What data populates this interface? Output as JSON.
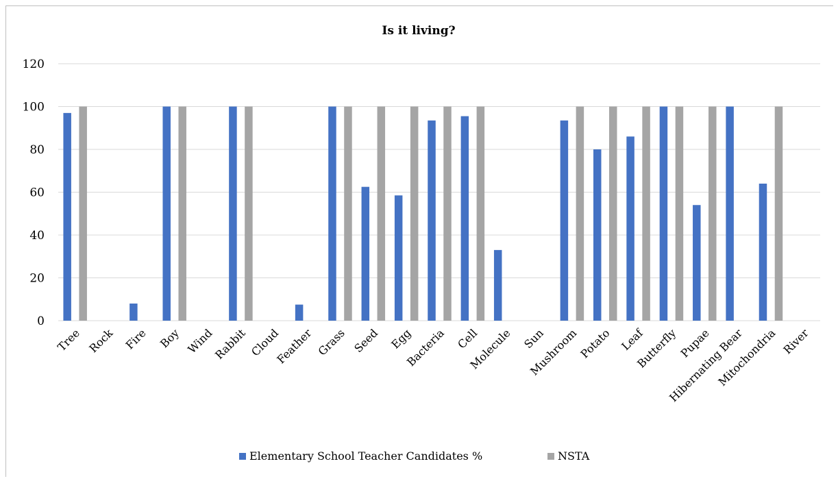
{
  "chart_data": {
    "type": "bar",
    "title": "Is it living?",
    "xlabel": "",
    "ylabel": "",
    "ylim": [
      0,
      120
    ],
    "yticks": [
      0,
      20,
      40,
      60,
      80,
      100,
      120
    ],
    "grid": true,
    "legend_position": "bottom",
    "categories": [
      "Tree",
      "Rock",
      "Fire",
      "Boy",
      "Wind",
      "Rabbit",
      "Cloud",
      "Feather",
      "Grass",
      "Seed",
      "Egg",
      "Bacteria",
      "Cell",
      "Molecule",
      "Sun",
      "Mushroom",
      "Potato",
      "Leaf",
      "Butterfly",
      "Pupae",
      "Hibernating Bear",
      "Mitochondria",
      "River"
    ],
    "series": [
      {
        "name": "Elementary School Teacher Candidates %",
        "color": "#4472c4",
        "values": [
          97,
          0,
          8,
          100,
          0,
          100,
          0,
          7.5,
          100,
          62.5,
          58.5,
          93.5,
          95.5,
          33,
          0,
          93.5,
          80,
          86,
          100,
          54,
          100,
          64,
          0
        ]
      },
      {
        "name": "NSTA",
        "color": "#a5a5a5",
        "values": [
          100,
          0,
          0,
          100,
          0,
          100,
          0,
          0,
          100,
          100,
          100,
          100,
          100,
          0,
          0,
          100,
          100,
          100,
          100,
          100,
          0,
          100,
          0
        ]
      }
    ]
  }
}
